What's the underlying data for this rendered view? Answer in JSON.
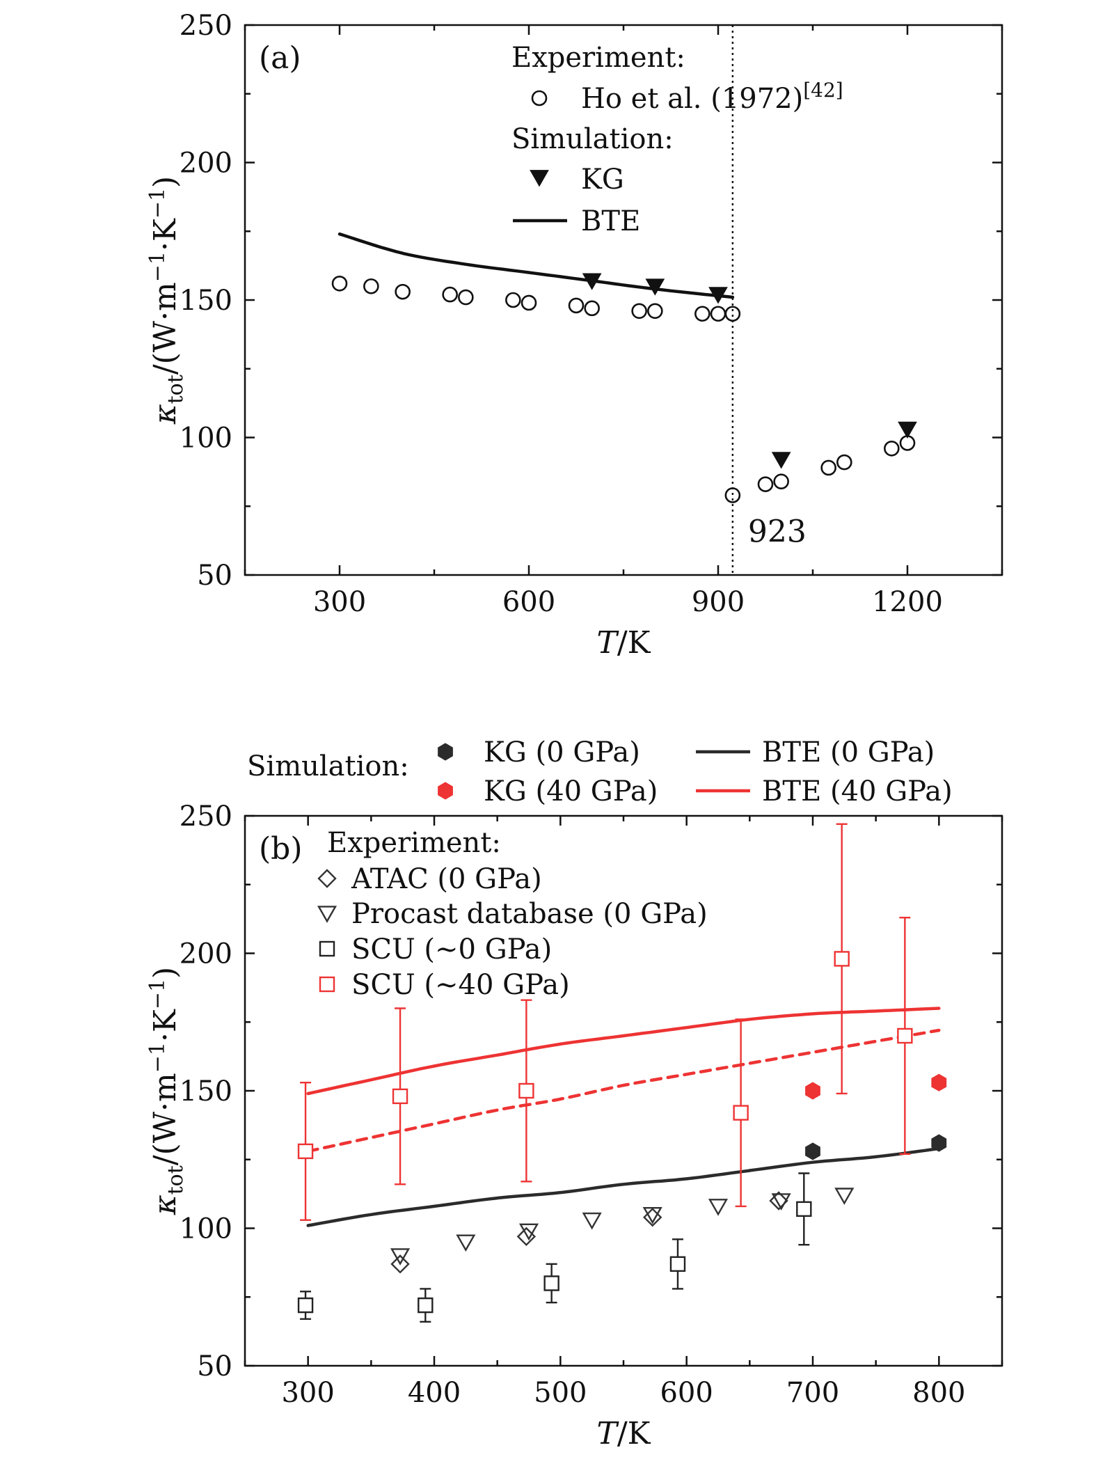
{
  "chart_data": [
    {
      "type": "scatter",
      "panel_label": "(a)",
      "xlabel": "T/K",
      "ylabel": "κtot/(W·m−1·K−1)",
      "xlim": [
        150,
        1350
      ],
      "ylim": [
        50,
        250
      ],
      "xticks": [
        300,
        600,
        900,
        1200
      ],
      "yticks": [
        50,
        100,
        150,
        200,
        250
      ],
      "vline": {
        "x": 923,
        "label": "923"
      },
      "legend": {
        "experiment_header": "Experiment:",
        "experiment_entry": "Ho et al. (1972)",
        "experiment_ref": "[42]",
        "simulation_header": "Simulation:",
        "kg": "KG",
        "bte": "BTE"
      },
      "series": [
        {
          "name": "Ho et al. (1972)",
          "kind": "experiment",
          "marker": "circle",
          "x": [
            300,
            350,
            400,
            475,
            500,
            575,
            600,
            675,
            700,
            775,
            800,
            875,
            900,
            923,
            923,
            975,
            1000,
            1075,
            1100,
            1175,
            1200
          ],
          "y": [
            156,
            155,
            153,
            152,
            151,
            150,
            149,
            148,
            147,
            146,
            146,
            145,
            145,
            145,
            79,
            83,
            84,
            89,
            91,
            96,
            98
          ]
        },
        {
          "name": "KG",
          "kind": "simulation",
          "marker": "triangle-down-filled",
          "x": [
            700,
            800,
            900,
            1000,
            1200
          ],
          "y": [
            157,
            155,
            152,
            92,
            103
          ]
        },
        {
          "name": "BTE",
          "kind": "simulation",
          "line": "solid",
          "x": [
            300,
            400,
            500,
            600,
            700,
            800,
            923
          ],
          "y": [
            174,
            167,
            163,
            160,
            157,
            154,
            151
          ]
        }
      ]
    },
    {
      "type": "scatter",
      "panel_label": "(b)",
      "xlabel": "T/K",
      "ylabel": "κtot/(W·m−1·K−1)",
      "xlim": [
        250,
        850
      ],
      "ylim": [
        50,
        250
      ],
      "xticks": [
        300,
        400,
        500,
        600,
        700,
        800
      ],
      "yticks": [
        50,
        100,
        150,
        200,
        250
      ],
      "legend": {
        "simulation_header": "Simulation:",
        "experiment_header": "Experiment:",
        "kg0": "KG (0 GPa)",
        "kg40": "KG (40 GPa)",
        "bte0": "BTE (0 GPa)",
        "bte40": "BTE (40 GPa)",
        "atac": "ATAC (0 GPa)",
        "procast": "Procast database (0 GPa)",
        "scu0": "SCU (∼0 GPa)",
        "scu40": "SCU (∼40 GPa)"
      },
      "series": [
        {
          "name": "KG (0 GPa)",
          "marker": "hexagon-filled",
          "color": "#2b2b2b",
          "x": [
            700,
            800
          ],
          "y": [
            128,
            131
          ]
        },
        {
          "name": "KG (40 GPa)",
          "marker": "hexagon-filled",
          "color": "#ee3333",
          "x": [
            700,
            800
          ],
          "y": [
            150,
            153
          ]
        },
        {
          "name": "BTE (0 GPa)",
          "line": "solid",
          "color": "#2b2b2b",
          "x": [
            300,
            350,
            400,
            450,
            500,
            550,
            600,
            650,
            700,
            750,
            800
          ],
          "y": [
            101,
            105,
            108,
            111,
            113,
            116,
            118,
            121,
            124,
            126,
            129
          ]
        },
        {
          "name": "BTE (40 GPa)",
          "line": "solid",
          "color": "#ee3333",
          "x": [
            300,
            350,
            400,
            450,
            500,
            550,
            600,
            650,
            700,
            750,
            800
          ],
          "y": [
            149,
            154,
            159,
            163,
            167,
            170,
            173,
            176,
            178,
            179,
            180
          ]
        },
        {
          "name": "",
          "line": "dashed",
          "color": "#ee3333",
          "x": [
            300,
            350,
            400,
            450,
            500,
            550,
            600,
            650,
            700,
            750,
            800
          ],
          "y": [
            128,
            133,
            138,
            143,
            147,
            152,
            156,
            160,
            164,
            168,
            172
          ]
        },
        {
          "name": "ATAC (0 GPa)",
          "marker": "diamond-open",
          "color": "#333333",
          "x": [
            373,
            473,
            573,
            673
          ],
          "y": [
            87,
            97,
            104,
            110
          ]
        },
        {
          "name": "Procast database (0 GPa)",
          "marker": "triangle-down-open",
          "color": "#333333",
          "x": [
            373,
            425,
            475,
            525,
            573,
            625,
            675,
            725
          ],
          "y": [
            90,
            95,
            99,
            103,
            105,
            108,
            110,
            112
          ]
        },
        {
          "name": "SCU (∼0 GPa)",
          "marker": "square-open",
          "color": "#222222",
          "x": [
            298,
            393,
            493,
            593,
            693
          ],
          "y": [
            72,
            72,
            80,
            87,
            107
          ],
          "err": [
            5,
            6,
            7,
            9,
            13
          ]
        },
        {
          "name": "SCU (∼40 GPa)",
          "marker": "square-open",
          "color": "#ee3333",
          "x": [
            298,
            373,
            473,
            643,
            723,
            773
          ],
          "y": [
            128,
            148,
            150,
            142,
            198,
            170
          ],
          "err": [
            25,
            32,
            33,
            34,
            49,
            43
          ]
        }
      ]
    }
  ]
}
